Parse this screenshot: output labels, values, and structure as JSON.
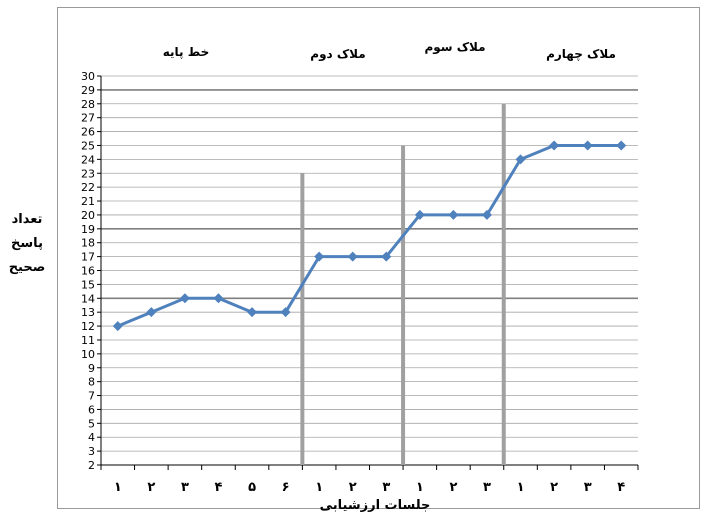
{
  "chart_data": {
    "type": "line",
    "xlabel": "جلسات ارزشیابی",
    "ylabel": [
      "تعداد",
      "پاسخ",
      "صحیح"
    ],
    "ylim": [
      2,
      30
    ],
    "yticks": [
      "2",
      "3",
      "4",
      "5",
      "6",
      "7",
      "8",
      "9",
      "10",
      "11",
      "12",
      "13",
      "14",
      "15",
      "16",
      "17",
      "18",
      "19",
      "20",
      "21",
      "22",
      "23",
      "24",
      "25",
      "26",
      "27",
      "28",
      "29",
      "30"
    ],
    "phases": [
      "خط پایه",
      "ملاک دوم",
      "ملاک سوم",
      "ملاک چهارم"
    ],
    "categories": [
      "۱",
      "۲",
      "۳",
      "۴",
      "۵",
      "۶",
      "۱",
      "۲",
      "۳",
      "۱",
      "۲",
      "۳",
      "۱",
      "۲",
      "۳",
      "۴"
    ],
    "values": [
      12,
      13,
      14,
      14,
      13,
      13,
      17,
      17,
      17,
      20,
      20,
      20,
      24,
      25,
      25,
      25
    ],
    "criterion_lines": [
      23,
      25,
      28
    ],
    "colors": {
      "line": "#4f81bd",
      "grid": "#a6a6a6",
      "criterion": "#a0a0a0"
    }
  }
}
